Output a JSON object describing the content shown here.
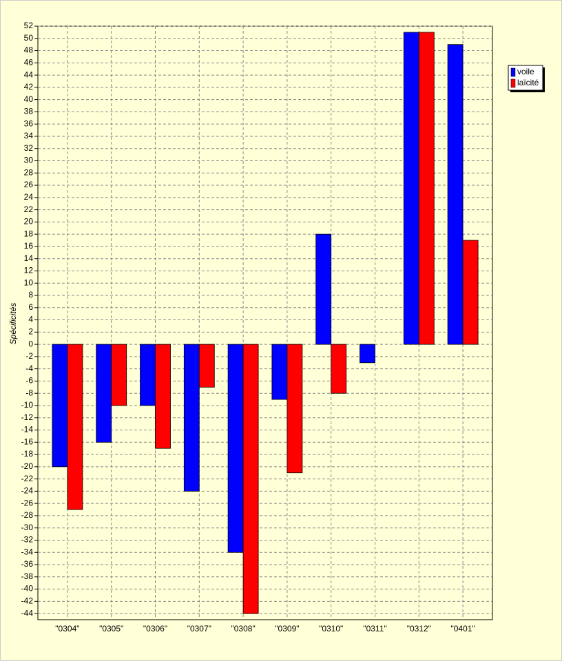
{
  "chart_data": {
    "type": "bar",
    "y_label": "Spécificités",
    "categories": [
      "\"0304\"",
      "\"0305\"",
      "\"0306\"",
      "\"0307\"",
      "\"0308\"",
      "\"0309\"",
      "\"0310\"",
      "\"0311\"",
      "\"0312\"",
      "\"0401\""
    ],
    "series": [
      {
        "name": "voile",
        "color": "#0000ff",
        "values": [
          -20,
          -16,
          -10,
          -24,
          -34,
          -9,
          18,
          -3,
          51,
          49
        ]
      },
      {
        "name": "laïcité",
        "color": "#ff0000",
        "values": [
          -27,
          -10,
          -17,
          -7,
          -44,
          -21,
          -8,
          0,
          51,
          17
        ]
      }
    ],
    "ylim": [
      -45,
      52
    ],
    "yticks": [
      -44,
      -42,
      -40,
      -38,
      -36,
      -34,
      -32,
      -30,
      -28,
      -26,
      -24,
      -22,
      -20,
      -18,
      -16,
      -14,
      -12,
      -10,
      -8,
      -6,
      -4,
      -2,
      0,
      2,
      4,
      6,
      8,
      10,
      12,
      14,
      16,
      18,
      20,
      22,
      24,
      26,
      28,
      30,
      32,
      34,
      36,
      38,
      40,
      42,
      44,
      46,
      48,
      50,
      52
    ],
    "grid": true,
    "legend": "upper right"
  }
}
